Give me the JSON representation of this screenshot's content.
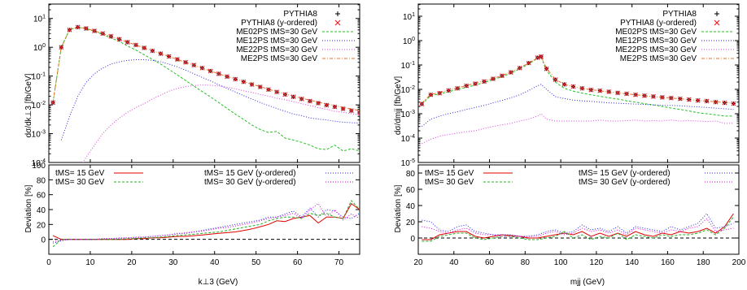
{
  "panels": [
    {
      "top_ylabel": "dσ/dk⊥3  [fb/GeV]",
      "bottom_ylabel": "Deviation [%]",
      "xlabel": "k⊥3 (GeV)"
    },
    {
      "top_ylabel": "dσ/dmjj  [fb/GeV]",
      "bottom_ylabel": "Deviation [%]",
      "xlabel": "mjj (GeV)"
    }
  ],
  "colors": {
    "pythia": "#000000",
    "pythia_y": "#e8202a",
    "me0": "#22c022",
    "me1": "#2a2ae0",
    "me2": "#e040e0",
    "me2ps": "#f07020",
    "dev_red": "#e00000",
    "dev_green": "#20b020",
    "dev_blue": "#2020e0",
    "dev_magenta": "#e000e0"
  },
  "chart_data": [
    {
      "type": "line",
      "panel": "left-top",
      "xlim": [
        0,
        75
      ],
      "ylim_log10": [
        -4,
        1.5
      ],
      "yscale": "log",
      "xticks": [
        0,
        10,
        20,
        30,
        40,
        50,
        60,
        70
      ],
      "yticks_labels": [
        "10-4",
        "10-3",
        "10-2",
        "10-1",
        "100",
        "101"
      ],
      "legend": [
        "PYTHIA8",
        "PYTHIA8 (y-ordered)",
        "ME02PS tMS=30 GeV",
        "ME12PS tMS=30 GeV",
        "ME22PS tMS=30 GeV",
        "ME2PS tMS=30 GeV"
      ],
      "x": [
        1,
        3,
        5,
        7,
        9,
        11,
        13,
        15,
        17,
        19,
        21,
        23,
        25,
        27,
        29,
        31,
        33,
        35,
        37,
        39,
        41,
        43,
        45,
        47,
        49,
        51,
        53,
        55,
        57,
        59,
        61,
        63,
        65,
        67,
        69,
        71,
        73,
        75
      ],
      "series": [
        {
          "name": "PYTHIA8",
          "values": [
            0.012,
            1.0,
            4.0,
            5.0,
            4.5,
            3.7,
            3.0,
            2.4,
            1.9,
            1.5,
            1.2,
            0.95,
            0.75,
            0.6,
            0.48,
            0.38,
            0.3,
            0.24,
            0.19,
            0.15,
            0.12,
            0.096,
            0.078,
            0.063,
            0.051,
            0.042,
            0.034,
            0.028,
            0.023,
            0.019,
            0.016,
            0.0135,
            0.0115,
            0.0098,
            0.0085,
            0.0073,
            0.0063,
            0.0055
          ]
        },
        {
          "name": "PYTHIA8 (y-ordered)",
          "values": [
            0.012,
            1.0,
            4.0,
            5.0,
            4.5,
            3.7,
            3.0,
            2.4,
            1.9,
            1.5,
            1.2,
            0.95,
            0.75,
            0.6,
            0.48,
            0.38,
            0.3,
            0.24,
            0.19,
            0.15,
            0.12,
            0.096,
            0.078,
            0.063,
            0.051,
            0.042,
            0.034,
            0.028,
            0.023,
            0.019,
            0.016,
            0.0135,
            0.0115,
            0.0098,
            0.0085,
            0.0073,
            0.0063,
            0.0055
          ]
        },
        {
          "name": "ME02PS tMS=30 GeV",
          "values": [
            0.012,
            1.0,
            4.1,
            5.0,
            4.4,
            3.6,
            2.8,
            2.1,
            1.6,
            1.1,
            0.8,
            0.55,
            0.38,
            0.26,
            0.17,
            0.11,
            0.07,
            0.045,
            0.029,
            0.019,
            0.012,
            0.0075,
            0.0048,
            0.0031,
            0.002,
            0.0014,
            0.0011,
            0.0012,
            0.0007,
            0.0006,
            0.0005,
            0.0004,
            0.0003,
            0.00028,
            0.0004,
            0.00025,
            0.0003,
            0.00025
          ]
        },
        {
          "name": "ME12PS tMS=30 GeV",
          "values": [
            0.0,
            0.0006,
            0.004,
            0.02,
            0.06,
            0.12,
            0.19,
            0.26,
            0.31,
            0.35,
            0.37,
            0.37,
            0.35,
            0.31,
            0.26,
            0.21,
            0.16,
            0.12,
            0.09,
            0.068,
            0.05,
            0.037,
            0.028,
            0.021,
            0.016,
            0.012,
            0.0095,
            0.0075,
            0.006,
            0.0048,
            0.0042,
            0.0035,
            0.0032,
            0.003,
            0.0027,
            0.0025,
            0.0024,
            0.0023
          ]
        },
        {
          "name": "ME22PS tMS=30 GeV",
          "values": [
            0.0,
            0.0,
            0.0,
            5e-05,
            0.00015,
            0.0004,
            0.001,
            0.002,
            0.0035,
            0.0055,
            0.008,
            0.011,
            0.016,
            0.022,
            0.03,
            0.037,
            0.043,
            0.047,
            0.049,
            0.048,
            0.045,
            0.041,
            0.036,
            0.031,
            0.027,
            0.023,
            0.02,
            0.017,
            0.015,
            0.013,
            0.011,
            0.0095,
            0.008,
            0.007,
            0.006,
            0.0055,
            0.005,
            0.0045
          ]
        },
        {
          "name": "ME2PS tMS=30 GeV",
          "values": [
            0.012,
            1.0,
            4.0,
            5.0,
            4.5,
            3.7,
            3.0,
            2.4,
            1.9,
            1.5,
            1.2,
            0.95,
            0.76,
            0.6,
            0.48,
            0.38,
            0.3,
            0.24,
            0.19,
            0.15,
            0.12,
            0.097,
            0.079,
            0.064,
            0.052,
            0.043,
            0.035,
            0.029,
            0.024,
            0.02,
            0.017,
            0.0145,
            0.0125,
            0.0108,
            0.0094,
            0.0082,
            0.0072,
            0.0063
          ]
        }
      ]
    },
    {
      "type": "line",
      "panel": "left-bottom",
      "xlim": [
        0,
        75
      ],
      "ylim": [
        -20,
        100
      ],
      "xticks": [
        0,
        10,
        20,
        30,
        40,
        50,
        60,
        70
      ],
      "yticks": [
        0,
        20,
        40,
        60,
        80,
        100
      ],
      "legend": [
        "tMS= 15 GeV",
        "tMS= 30 GeV",
        "tMS= 15 GeV (y-ordered)",
        "tMS= 30 GeV (y-ordered)"
      ],
      "x": [
        1,
        3,
        5,
        7,
        9,
        11,
        13,
        15,
        17,
        19,
        21,
        23,
        25,
        27,
        29,
        31,
        33,
        35,
        37,
        39,
        41,
        43,
        45,
        47,
        49,
        51,
        53,
        55,
        57,
        59,
        61,
        63,
        65,
        67,
        69,
        71,
        73,
        75
      ],
      "series": [
        {
          "name": "tMS= 15 GeV",
          "values": [
            5,
            0,
            0,
            0,
            0,
            0,
            0,
            0,
            0,
            0,
            1,
            1,
            2,
            2,
            3,
            4,
            4,
            5,
            6,
            7,
            8,
            9,
            10,
            12,
            14,
            17,
            20,
            25,
            24,
            28,
            30,
            32,
            22,
            30,
            30,
            28,
            48,
            40
          ]
        },
        {
          "name": "tMS= 30 GeV",
          "values": [
            -10,
            0,
            0,
            0,
            0,
            0,
            0,
            0,
            0,
            1,
            1,
            2,
            2,
            3,
            4,
            5,
            6,
            7,
            8,
            9,
            10,
            12,
            14,
            16,
            18,
            20,
            25,
            28,
            30,
            30,
            28,
            35,
            32,
            35,
            30,
            28,
            52,
            40
          ]
        },
        {
          "name": "tMS= 15 GeV (y-ordered)",
          "values": [
            -5,
            -2,
            0,
            0,
            0,
            0,
            1,
            1,
            1,
            2,
            2,
            3,
            4,
            5,
            6,
            8,
            8,
            10,
            12,
            14,
            16,
            18,
            20,
            22,
            24,
            26,
            30,
            30,
            34,
            38,
            30,
            42,
            30,
            40,
            38,
            30,
            28,
            35
          ]
        },
        {
          "name": "tMS= 30 GeV (y-ordered)",
          "values": [
            -3,
            -1,
            0,
            0,
            0,
            0,
            1,
            1,
            2,
            2,
            3,
            3,
            4,
            5,
            6,
            7,
            9,
            10,
            11,
            13,
            15,
            16,
            18,
            20,
            22,
            25,
            28,
            30,
            32,
            35,
            28,
            40,
            48,
            30,
            40,
            26,
            34,
            28
          ]
        }
      ]
    },
    {
      "type": "line",
      "panel": "right-top",
      "xlim": [
        20,
        200
      ],
      "ylim_log10": [
        -5,
        1.5
      ],
      "yscale": "log",
      "xticks": [
        20,
        40,
        60,
        80,
        100,
        120,
        140,
        160,
        180,
        200
      ],
      "yticks_labels": [
        "10-5",
        "10-4",
        "10-3",
        "10-2",
        "10-1",
        "100",
        "101"
      ],
      "legend": [
        "PYTHIA8",
        "PYTHIA8 (y-ordered)",
        "ME02PS tMS=30 GeV",
        "ME12PS tMS=30 GeV",
        "ME22PS tMS=30 GeV",
        "ME2PS tMS=30 GeV"
      ],
      "x": [
        22,
        27,
        32,
        37,
        42,
        47,
        52,
        57,
        62,
        67,
        72,
        77,
        82,
        87,
        89,
        92,
        97,
        102,
        107,
        112,
        117,
        122,
        127,
        132,
        137,
        142,
        147,
        152,
        157,
        162,
        167,
        172,
        177,
        182,
        187,
        192,
        197
      ],
      "series": [
        {
          "name": "PYTHIA8",
          "values": [
            0.0025,
            0.006,
            0.007,
            0.009,
            0.011,
            0.014,
            0.017,
            0.021,
            0.027,
            0.036,
            0.05,
            0.075,
            0.12,
            0.2,
            0.22,
            0.07,
            0.025,
            0.016,
            0.013,
            0.011,
            0.0095,
            0.0088,
            0.008,
            0.0072,
            0.0066,
            0.006,
            0.0055,
            0.0051,
            0.0047,
            0.0044,
            0.0041,
            0.0038,
            0.0035,
            0.0033,
            0.003,
            0.0028,
            0.0026
          ]
        },
        {
          "name": "PYTHIA8 (y-ordered)",
          "values": [
            0.0025,
            0.006,
            0.007,
            0.009,
            0.011,
            0.014,
            0.017,
            0.021,
            0.027,
            0.036,
            0.05,
            0.075,
            0.12,
            0.2,
            0.22,
            0.07,
            0.025,
            0.016,
            0.013,
            0.011,
            0.0095,
            0.0088,
            0.008,
            0.0072,
            0.0066,
            0.006,
            0.0055,
            0.0051,
            0.0047,
            0.0044,
            0.0041,
            0.0038,
            0.0035,
            0.0033,
            0.003,
            0.0028,
            0.0026
          ]
        },
        {
          "name": "ME02PS tMS=30 GeV",
          "values": [
            0.0025,
            0.0055,
            0.0065,
            0.008,
            0.01,
            0.012,
            0.015,
            0.019,
            0.025,
            0.033,
            0.046,
            0.07,
            0.11,
            0.19,
            0.21,
            0.06,
            0.02,
            0.011,
            0.0085,
            0.007,
            0.006,
            0.0052,
            0.0045,
            0.004,
            0.0034,
            0.003,
            0.0026,
            0.0023,
            0.002,
            0.0017,
            0.0015,
            0.0013,
            0.0011,
            0.001,
            0.0009,
            0.0008,
            0.0008
          ]
        },
        {
          "name": "ME12PS tMS=30 GeV",
          "values": [
            0.0003,
            0.0006,
            0.0008,
            0.001,
            0.0012,
            0.0015,
            0.0018,
            0.0022,
            0.0028,
            0.0035,
            0.0045,
            0.006,
            0.009,
            0.014,
            0.016,
            0.01,
            0.005,
            0.0042,
            0.0036,
            0.0034,
            0.0032,
            0.003,
            0.0028,
            0.0027,
            0.0026,
            0.0025,
            0.0024,
            0.0023,
            0.0022,
            0.0022,
            0.0021,
            0.002,
            0.0019,
            0.0018,
            0.0017,
            0.0016,
            0.0015
          ]
        },
        {
          "name": "ME22PS tMS=30 GeV",
          "values": [
            6e-05,
            9e-05,
            0.00012,
            0.00014,
            0.00016,
            0.00018,
            0.0002,
            0.00025,
            0.0003,
            0.00035,
            0.0004,
            0.0005,
            0.0006,
            0.0008,
            0.001,
            0.0006,
            0.0005,
            0.0005,
            0.0005,
            0.0005,
            0.0005,
            0.00055,
            0.0005,
            0.0005,
            0.00052,
            0.00055,
            0.0005,
            0.00052,
            0.0005,
            0.00055,
            0.0005,
            0.00052,
            0.0005,
            0.00048,
            0.0005,
            0.0004,
            0.0004
          ]
        },
        {
          "name": "ME2PS tMS=30 GeV",
          "values": [
            0.0027,
            0.0062,
            0.0073,
            0.0093,
            0.0114,
            0.0145,
            0.0176,
            0.022,
            0.028,
            0.037,
            0.051,
            0.077,
            0.12,
            0.2,
            0.23,
            0.072,
            0.026,
            0.016,
            0.0128,
            0.0109,
            0.0097,
            0.0087,
            0.0078,
            0.0072,
            0.0065,
            0.006,
            0.0055,
            0.005,
            0.0047,
            0.0044,
            0.0041,
            0.0038,
            0.0035,
            0.0033,
            0.0031,
            0.0029,
            0.0027
          ]
        }
      ]
    },
    {
      "type": "line",
      "panel": "right-bottom",
      "xlim": [
        20,
        200
      ],
      "ylim": [
        -20,
        90
      ],
      "xticks": [
        20,
        40,
        60,
        80,
        100,
        120,
        140,
        160,
        180,
        200
      ],
      "yticks": [
        0,
        20,
        40,
        60,
        80
      ],
      "legend": [
        "tMS= 15 GeV",
        "tMS= 30 GeV",
        "tMS= 15 GeV (y-ordered)",
        "tMS= 30 GeV (y-ordered)"
      ],
      "x": [
        22,
        27,
        32,
        37,
        42,
        47,
        52,
        57,
        62,
        67,
        72,
        77,
        82,
        87,
        92,
        97,
        102,
        107,
        112,
        117,
        122,
        127,
        132,
        137,
        142,
        147,
        152,
        157,
        162,
        167,
        172,
        177,
        182,
        187,
        192,
        197
      ],
      "series": [
        {
          "name": "tMS= 15 GeV",
          "values": [
            -2,
            -2,
            4,
            6,
            8,
            8,
            2,
            0,
            2,
            4,
            3,
            2,
            0,
            0,
            2,
            4,
            6,
            4,
            8,
            2,
            6,
            2,
            6,
            2,
            8,
            4,
            2,
            6,
            4,
            8,
            6,
            8,
            12,
            6,
            14,
            30
          ]
        },
        {
          "name": "tMS= 30 GeV",
          "values": [
            -4,
            -4,
            2,
            4,
            6,
            6,
            0,
            -2,
            0,
            2,
            2,
            0,
            -2,
            -2,
            0,
            2,
            8,
            0,
            4,
            -2,
            2,
            0,
            6,
            -2,
            4,
            2,
            0,
            4,
            2,
            4,
            4,
            6,
            10,
            4,
            12,
            26
          ]
        },
        {
          "name": "tMS= 15 GeV (y-ordered)",
          "values": [
            22,
            20,
            10,
            8,
            14,
            16,
            8,
            6,
            4,
            4,
            4,
            2,
            2,
            4,
            8,
            10,
            6,
            8,
            16,
            10,
            12,
            8,
            14,
            6,
            14,
            12,
            10,
            8,
            14,
            10,
            14,
            18,
            30,
            12,
            14,
            18
          ]
        },
        {
          "name": "tMS= 30 GeV (y-ordered)",
          "values": [
            14,
            12,
            8,
            6,
            10,
            12,
            6,
            4,
            4,
            2,
            2,
            2,
            2,
            2,
            6,
            8,
            4,
            6,
            12,
            8,
            10,
            6,
            10,
            4,
            12,
            10,
            8,
            6,
            10,
            8,
            12,
            14,
            24,
            8,
            10,
            12
          ]
        }
      ]
    }
  ]
}
